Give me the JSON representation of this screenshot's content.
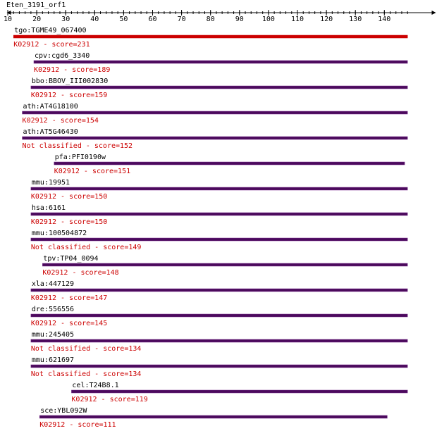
{
  "query": {
    "name": "Eten_3191_orf1"
  },
  "ruler": {
    "min": 1,
    "max": 148,
    "major_ticks": [
      10,
      20,
      30,
      40,
      50,
      60,
      70,
      80,
      90,
      100,
      110,
      120,
      130,
      140
    ],
    "minor_step": 2
  },
  "colors": {
    "ruler": "#000000",
    "label": "#000000",
    "score_text": "#cc0000",
    "top_bar": "#cc0000",
    "bar": "#4b0a5c",
    "bar_edge": "#7a2f8f"
  },
  "hits": [
    {
      "label": "tgo:TGME49_067400",
      "score_text": "K02912 - score=231",
      "start": 12,
      "end": 148,
      "top": true
    },
    {
      "label": "cpv:cgd6_3340",
      "score_text": "K02912 - score=189",
      "start": 19,
      "end": 148
    },
    {
      "label": "bbo:BBOV_III002830",
      "score_text": "K02912 - score=159",
      "start": 18,
      "end": 148
    },
    {
      "label": "ath:AT4G18100",
      "score_text": "K02912 - score=154",
      "start": 15,
      "end": 148
    },
    {
      "label": "ath:AT5G46430",
      "score_text": "Not classified - score=152",
      "start": 15,
      "end": 148
    },
    {
      "label": "pfa:PFI0190w",
      "score_text": "K02912 - score=151",
      "start": 26,
      "end": 147
    },
    {
      "label": "mmu:19951",
      "score_text": "K02912 - score=150",
      "start": 18,
      "end": 148
    },
    {
      "label": "hsa:6161",
      "score_text": "K02912 - score=150",
      "start": 18,
      "end": 148
    },
    {
      "label": "mmu:100504872",
      "score_text": "Not classified - score=149",
      "start": 18,
      "end": 148
    },
    {
      "label": "tpv:TP04_0094",
      "score_text": "K02912 - score=148",
      "start": 22,
      "end": 148
    },
    {
      "label": "xla:447129",
      "score_text": "K02912 - score=147",
      "start": 18,
      "end": 148
    },
    {
      "label": "dre:556556",
      "score_text": "K02912 - score=145",
      "start": 18,
      "end": 148
    },
    {
      "label": "mmu:245405",
      "score_text": "Not classified - score=134",
      "start": 18,
      "end": 148
    },
    {
      "label": "mmu:621697",
      "score_text": "Not classified - score=134",
      "start": 18,
      "end": 148
    },
    {
      "label": "cel:T24B8.1",
      "score_text": "K02912 - score=119",
      "start": 32,
      "end": 148
    },
    {
      "label": "sce:YBL092W",
      "score_text": "K02912 - score=111",
      "start": 21,
      "end": 141
    }
  ]
}
